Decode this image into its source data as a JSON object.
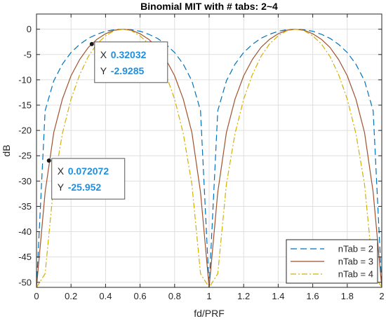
{
  "chart_data": {
    "type": "line",
    "title": "Binomial MIT with # tabs: 2~4",
    "xlabel": "fd/PRF",
    "ylabel": "dB",
    "xlim": [
      0,
      2
    ],
    "ylim": [
      -51,
      3
    ],
    "x_ticks": [
      0,
      0.2,
      0.4,
      0.6,
      0.8,
      1,
      1.2,
      1.4,
      1.6,
      1.8,
      2
    ],
    "x_tick_labels": [
      "0",
      "0.2",
      "0.4",
      "0.6",
      "0.8",
      "1",
      "1.2",
      "1.4",
      "1.6",
      "1.8",
      "2"
    ],
    "y_ticks": [
      0,
      -5,
      -10,
      -15,
      -20,
      -25,
      -30,
      -35,
      -40,
      -45,
      -50
    ],
    "y_tick_labels": [
      "0",
      "-5",
      "-10",
      "-15",
      "-20",
      "-25",
      "-30",
      "-35",
      "-40",
      "-45",
      "-50"
    ],
    "grid": true,
    "legend_position": "bottom-right",
    "series": [
      {
        "name": "nTab = 2",
        "color": "#0072BD",
        "dash": "dashed",
        "x": [
          0,
          0.05,
          0.1,
          0.15,
          0.2,
          0.25,
          0.3,
          0.35,
          0.4,
          0.45,
          0.5,
          0.55,
          0.6,
          0.65,
          0.7,
          0.75,
          0.8,
          0.85,
          0.9,
          0.95,
          1.0,
          1.05,
          1.1,
          1.15,
          1.2,
          1.25,
          1.3,
          1.35,
          1.4,
          1.45,
          1.5,
          1.55,
          1.6,
          1.65,
          1.7,
          1.75,
          1.8,
          1.85,
          1.9,
          1.95,
          2.0
        ],
        "y": [
          -51,
          -16.1,
          -10.2,
          -6.9,
          -4.6,
          -3.0,
          -1.8,
          -1.0,
          -0.4,
          -0.1,
          0,
          -0.1,
          -0.4,
          -1.0,
          -1.8,
          -3.0,
          -4.6,
          -6.9,
          -10.2,
          -16.1,
          -51,
          -16.1,
          -10.2,
          -6.9,
          -4.6,
          -3.0,
          -1.8,
          -1.0,
          -0.4,
          -0.1,
          0,
          -0.1,
          -0.4,
          -1.0,
          -1.8,
          -3.0,
          -4.6,
          -6.9,
          -10.2,
          -16.1,
          -51
        ]
      },
      {
        "name": "nTab = 3",
        "color": "#A0522D",
        "dash": "solid",
        "x": [
          0,
          0.05,
          0.1,
          0.15,
          0.2,
          0.25,
          0.3,
          0.35,
          0.4,
          0.45,
          0.5,
          0.55,
          0.6,
          0.65,
          0.7,
          0.75,
          0.8,
          0.85,
          0.9,
          0.95,
          1.0,
          1.05,
          1.1,
          1.15,
          1.2,
          1.25,
          1.3,
          1.35,
          1.4,
          1.45,
          1.5,
          1.55,
          1.6,
          1.65,
          1.7,
          1.75,
          1.8,
          1.85,
          1.9,
          1.95,
          2.0
        ],
        "y": [
          -51,
          -32.2,
          -20.4,
          -13.8,
          -9.2,
          -6.0,
          -3.6,
          -2.0,
          -0.9,
          -0.2,
          0,
          -0.2,
          -0.9,
          -2.0,
          -3.6,
          -6.0,
          -9.2,
          -13.8,
          -20.4,
          -32.2,
          -51,
          -32.2,
          -20.4,
          -13.8,
          -9.2,
          -6.0,
          -3.6,
          -2.0,
          -0.9,
          -0.2,
          0,
          -0.2,
          -0.9,
          -2.0,
          -3.6,
          -6.0,
          -9.2,
          -13.8,
          -20.4,
          -32.2,
          -51
        ]
      },
      {
        "name": "nTab = 4",
        "color": "#D4B000",
        "dash": "dashdot",
        "x": [
          0,
          0.05,
          0.1,
          0.15,
          0.2,
          0.25,
          0.3,
          0.35,
          0.4,
          0.45,
          0.5,
          0.55,
          0.6,
          0.65,
          0.7,
          0.75,
          0.8,
          0.85,
          0.9,
          0.95,
          1.0,
          1.05,
          1.1,
          1.15,
          1.2,
          1.25,
          1.3,
          1.35,
          1.4,
          1.45,
          1.5,
          1.55,
          1.6,
          1.65,
          1.7,
          1.75,
          1.8,
          1.85,
          1.9,
          1.95,
          2.0
        ],
        "y": [
          -51,
          -48.3,
          -30.6,
          -20.6,
          -13.8,
          -9.0,
          -5.4,
          -2.9,
          -1.3,
          -0.3,
          0,
          -0.3,
          -1.3,
          -2.9,
          -5.4,
          -9.0,
          -13.8,
          -20.6,
          -30.6,
          -48.3,
          -51,
          -48.3,
          -30.6,
          -20.6,
          -13.8,
          -9.0,
          -5.4,
          -2.9,
          -1.3,
          -0.3,
          0,
          -0.3,
          -1.3,
          -2.9,
          -5.4,
          -9.0,
          -13.8,
          -20.6,
          -30.6,
          -48.3,
          -51
        ]
      }
    ],
    "datatips": [
      {
        "x": 0.32032,
        "y": -2.9285,
        "x_label": "X",
        "y_label": "Y",
        "x_text": "0.32032",
        "y_text": "-2.9285"
      },
      {
        "x": 0.072072,
        "y": -25.952,
        "x_label": "X",
        "y_label": "Y",
        "x_text": "0.072072",
        "y_text": "-25.952"
      }
    ]
  }
}
